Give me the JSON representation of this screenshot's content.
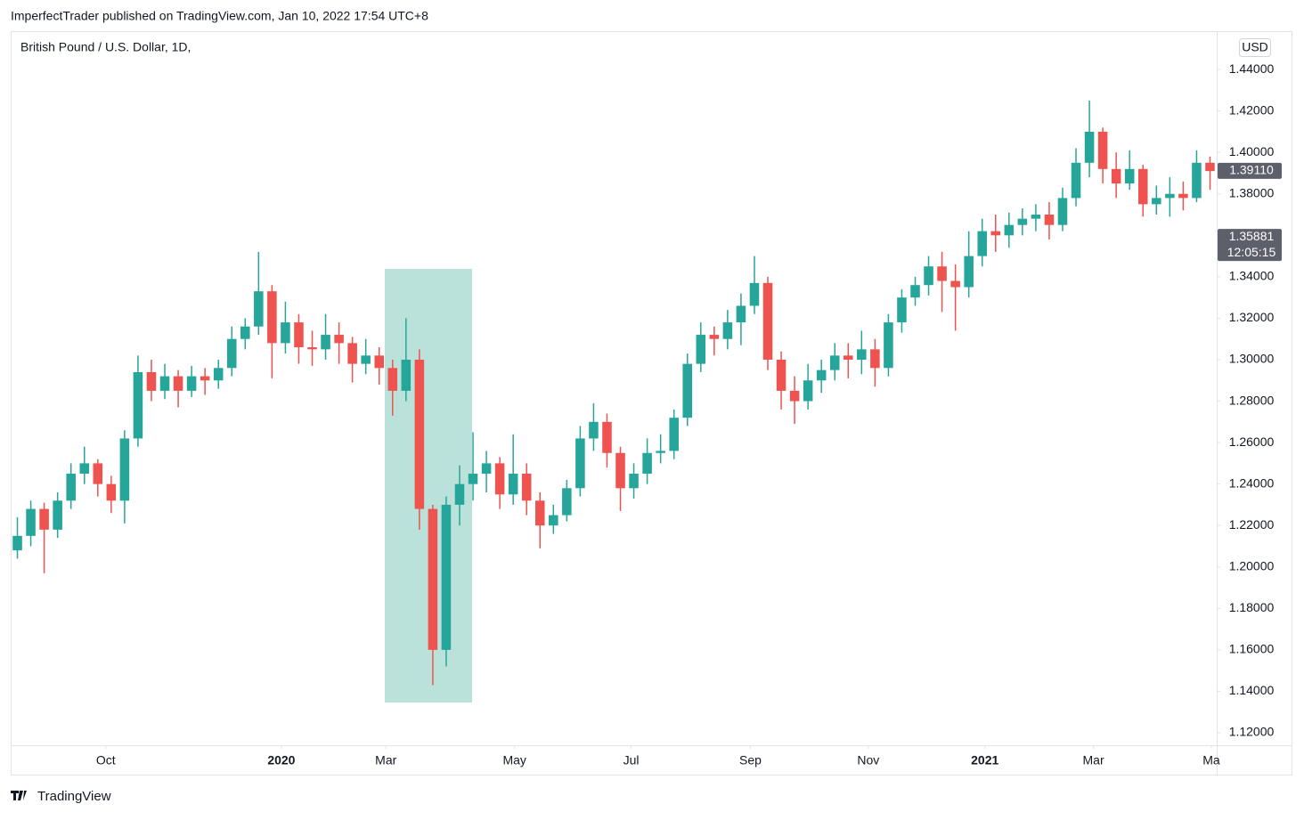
{
  "header": {
    "publisher": "ImperfectTrader published on TradingView.com, Jan 10, 2022 17:54 UTC+8",
    "footer": "TradingView"
  },
  "chart_data": {
    "type": "candlestick",
    "title": "British Pound / U.S. Dollar, 1D,",
    "currency": "USD",
    "up_color": "#26a69a",
    "down_color": "#ef5350",
    "xlim": [
      0,
      90
    ],
    "xticks": [
      {
        "value": 7.1,
        "label": "Oct"
      },
      {
        "value": 20.2,
        "label": "2020",
        "bold": true
      },
      {
        "value": 28.0,
        "label": "Mar"
      },
      {
        "value": 37.6,
        "label": "May"
      },
      {
        "value": 46.3,
        "label": "Jul"
      },
      {
        "value": 55.2,
        "label": "Sep"
      },
      {
        "value": 64.0,
        "label": "Nov"
      },
      {
        "value": 72.7,
        "label": "2021",
        "bold": true
      },
      {
        "value": 80.8,
        "label": "Mar"
      },
      {
        "value": 89.6,
        "label": "Ma"
      }
    ],
    "ylim": [
      1.114,
      1.4585
    ],
    "yticks": [
      {
        "value": 1.12,
        "label": "1.12000"
      },
      {
        "value": 1.14,
        "label": "1.14000"
      },
      {
        "value": 1.16,
        "label": "1.16000"
      },
      {
        "value": 1.18,
        "label": "1.18000"
      },
      {
        "value": 1.2,
        "label": "1.20000"
      },
      {
        "value": 1.22,
        "label": "1.22000"
      },
      {
        "value": 1.24,
        "label": "1.24000"
      },
      {
        "value": 1.26,
        "label": "1.26000"
      },
      {
        "value": 1.28,
        "label": "1.28000"
      },
      {
        "value": 1.3,
        "label": "1.30000"
      },
      {
        "value": 1.32,
        "label": "1.32000"
      },
      {
        "value": 1.34,
        "label": "1.34000"
      },
      {
        "value": 1.38,
        "label": "1.38000"
      },
      {
        "value": 1.4,
        "label": "1.40000"
      },
      {
        "value": 1.42,
        "label": "1.42000"
      },
      {
        "value": 1.44,
        "label": "1.44000"
      }
    ],
    "price_labels": [
      {
        "value": 1.3911,
        "label": "1.39110"
      },
      {
        "value": 1.35881,
        "label": "1.35881",
        "sub": "12:05:15"
      }
    ],
    "open": [
      1.208,
      1.215,
      1.228,
      1.218,
      1.232,
      1.245,
      1.25,
      1.24,
      1.232,
      1.262,
      1.294,
      1.285,
      1.292,
      1.285,
      1.292,
      1.29,
      1.296,
      1.31,
      1.316,
      1.333,
      1.308,
      1.318,
      1.306,
      1.305,
      1.312,
      1.308,
      1.298,
      1.302,
      1.296,
      1.285,
      1.3,
      1.228,
      1.16,
      1.23,
      1.24,
      1.245,
      1.25,
      1.235,
      1.245,
      1.232,
      1.22,
      1.225,
      1.238,
      1.262,
      1.27,
      1.255,
      1.238,
      1.245,
      1.255,
      1.256,
      1.272,
      1.298,
      1.312,
      1.31,
      1.318,
      1.326,
      1.337,
      1.3,
      1.285,
      1.28,
      1.29,
      1.295,
      1.302,
      1.3,
      1.305,
      1.296,
      1.318,
      1.33,
      1.336,
      1.345,
      1.338,
      1.335,
      1.35,
      1.362,
      1.36,
      1.365,
      1.368,
      1.37,
      1.365,
      1.378,
      1.395,
      1.41,
      1.392,
      1.385,
      1.392,
      1.375,
      1.378,
      1.38,
      1.378,
      1.395
    ],
    "high": [
      1.224,
      1.232,
      1.231,
      1.236,
      1.25,
      1.258,
      1.252,
      1.244,
      1.266,
      1.302,
      1.3,
      1.298,
      1.295,
      1.297,
      1.296,
      1.3,
      1.316,
      1.32,
      1.352,
      1.336,
      1.328,
      1.322,
      1.314,
      1.322,
      1.318,
      1.311,
      1.31,
      1.306,
      1.3,
      1.32,
      1.305,
      1.23,
      1.234,
      1.249,
      1.265,
      1.256,
      1.253,
      1.264,
      1.25,
      1.236,
      1.23,
      1.242,
      1.268,
      1.279,
      1.274,
      1.258,
      1.25,
      1.262,
      1.264,
      1.276,
      1.303,
      1.318,
      1.316,
      1.324,
      1.332,
      1.35,
      1.34,
      1.304,
      1.292,
      1.298,
      1.3,
      1.308,
      1.308,
      1.314,
      1.31,
      1.322,
      1.334,
      1.34,
      1.35,
      1.352,
      1.346,
      1.362,
      1.368,
      1.37,
      1.371,
      1.373,
      1.375,
      1.376,
      1.383,
      1.402,
      1.425,
      1.412,
      1.4,
      1.401,
      1.394,
      1.384,
      1.388,
      1.386,
      1.401,
      1.398
    ],
    "low": [
      1.204,
      1.21,
      1.197,
      1.214,
      1.228,
      1.24,
      1.234,
      1.226,
      1.221,
      1.258,
      1.28,
      1.281,
      1.277,
      1.282,
      1.283,
      1.286,
      1.292,
      1.305,
      1.312,
      1.291,
      1.303,
      1.298,
      1.297,
      1.3,
      1.298,
      1.289,
      1.293,
      1.288,
      1.273,
      1.28,
      1.218,
      1.143,
      1.152,
      1.22,
      1.232,
      1.236,
      1.228,
      1.23,
      1.225,
      1.209,
      1.216,
      1.222,
      1.234,
      1.256,
      1.248,
      1.227,
      1.233,
      1.24,
      1.25,
      1.252,
      1.268,
      1.294,
      1.302,
      1.305,
      1.307,
      1.322,
      1.295,
      1.276,
      1.269,
      1.276,
      1.284,
      1.29,
      1.291,
      1.293,
      1.287,
      1.292,
      1.313,
      1.326,
      1.331,
      1.323,
      1.314,
      1.33,
      1.345,
      1.352,
      1.354,
      1.36,
      1.362,
      1.358,
      1.362,
      1.374,
      1.388,
      1.385,
      1.378,
      1.382,
      1.369,
      1.37,
      1.369,
      1.372,
      1.376,
      1.382
    ],
    "close": [
      1.215,
      1.228,
      1.218,
      1.232,
      1.245,
      1.25,
      1.24,
      1.232,
      1.262,
      1.294,
      1.285,
      1.292,
      1.285,
      1.292,
      1.29,
      1.296,
      1.31,
      1.316,
      1.333,
      1.308,
      1.318,
      1.306,
      1.305,
      1.312,
      1.308,
      1.298,
      1.302,
      1.296,
      1.285,
      1.3,
      1.228,
      1.16,
      1.23,
      1.24,
      1.245,
      1.25,
      1.235,
      1.245,
      1.232,
      1.22,
      1.225,
      1.238,
      1.262,
      1.27,
      1.255,
      1.238,
      1.245,
      1.255,
      1.256,
      1.272,
      1.298,
      1.312,
      1.31,
      1.318,
      1.326,
      1.337,
      1.3,
      1.285,
      1.28,
      1.29,
      1.295,
      1.302,
      1.3,
      1.305,
      1.296,
      1.318,
      1.33,
      1.336,
      1.345,
      1.338,
      1.335,
      1.35,
      1.362,
      1.36,
      1.365,
      1.368,
      1.37,
      1.365,
      1.378,
      1.395,
      1.41,
      1.392,
      1.385,
      1.392,
      1.375,
      1.378,
      1.38,
      1.378,
      1.395,
      1.391
    ]
  }
}
